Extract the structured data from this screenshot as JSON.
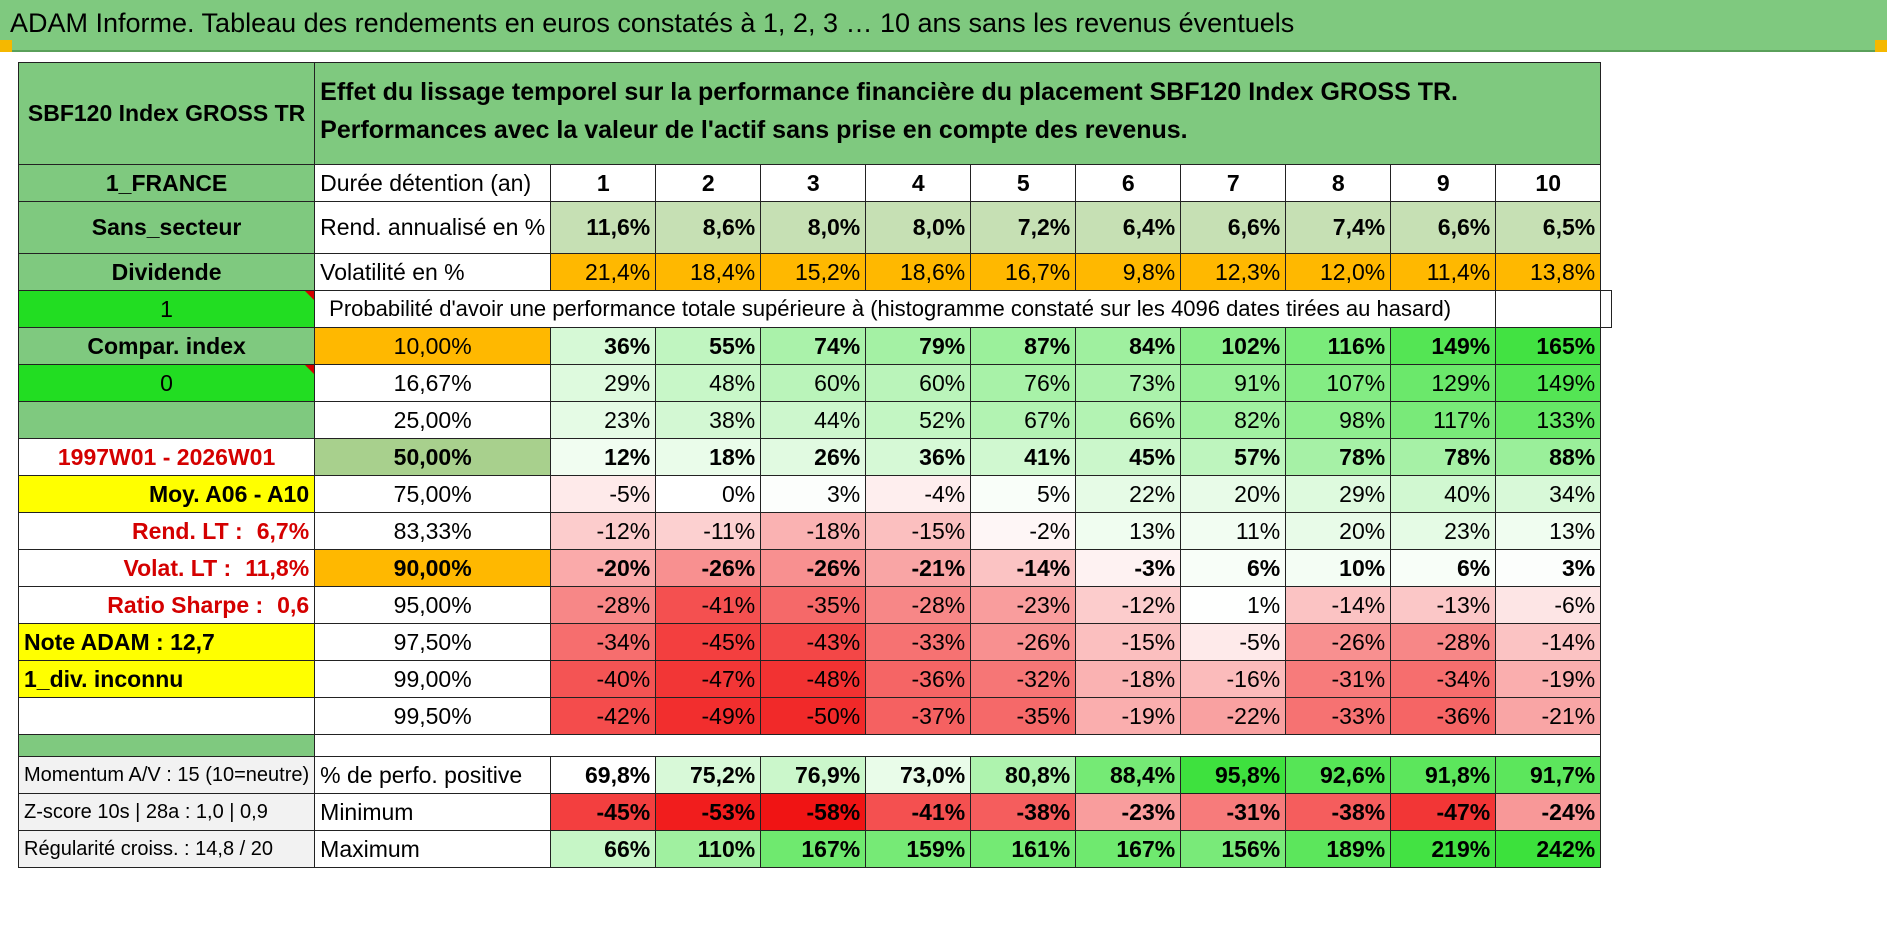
{
  "title": "ADAM Informe. Tableau des rendements en euros constatés à 1, 2, 3 … 10 ans sans les revenus éventuels",
  "fund_name": "SBF120 Index GROSS TR",
  "description": "Effet du lissage temporel sur la performance financière du placement SBF120 Index GROSS TR. Performances avec la valeur de l'actif sans prise en compte des revenus.",
  "side": {
    "country": "1_FRANCE",
    "sector": "Sans_secteur",
    "dividend_label": "Dividende",
    "dividend_value": "1",
    "compar_label": "Compar. index",
    "compar_value": "0",
    "period": "1997W01 - 2026W01",
    "moy": "Moy. A06 - A10",
    "rend_lt_label": "Rend. LT :",
    "rend_lt_value": "6,7%",
    "volat_lt_label": "Volat. LT :",
    "volat_lt_value": "11,8%",
    "sharpe_label": "Ratio Sharpe :",
    "sharpe_value": "0,6",
    "note": "Note ADAM : 12,7",
    "div_inconnu": "1_div. inconnu"
  },
  "duree_label": "Durée détention (an)",
  "years": [
    "1",
    "2",
    "3",
    "4",
    "5",
    "6",
    "7",
    "8",
    "9",
    "10"
  ],
  "rend_label": "Rend. annualisé en %",
  "rend": [
    "11,6%",
    "8,6%",
    "8,0%",
    "8,0%",
    "7,2%",
    "6,4%",
    "6,6%",
    "7,4%",
    "6,6%",
    "6,5%"
  ],
  "volat_label": "Volatilité en %",
  "volat": [
    "21,4%",
    "18,4%",
    "15,2%",
    "18,6%",
    "16,7%",
    "9,8%",
    "12,3%",
    "12,0%",
    "11,4%",
    "13,8%"
  ],
  "proba_label": "Probabilité d'avoir une performance totale supérieure à (histogramme constaté sur les 4096 dates tirées au hasard)",
  "proba_rows": [
    {
      "p": "10,00%",
      "v": [
        "36%",
        "55%",
        "74%",
        "79%",
        "87%",
        "84%",
        "102%",
        "116%",
        "149%",
        "165%"
      ]
    },
    {
      "p": "16,67%",
      "v": [
        "29%",
        "48%",
        "60%",
        "60%",
        "76%",
        "73%",
        "91%",
        "107%",
        "129%",
        "149%"
      ]
    },
    {
      "p": "25,00%",
      "v": [
        "23%",
        "38%",
        "44%",
        "52%",
        "67%",
        "66%",
        "82%",
        "98%",
        "117%",
        "133%"
      ]
    },
    {
      "p": "50,00%",
      "v": [
        "12%",
        "18%",
        "26%",
        "36%",
        "41%",
        "45%",
        "57%",
        "78%",
        "78%",
        "88%"
      ]
    },
    {
      "p": "75,00%",
      "v": [
        "-5%",
        "0%",
        "3%",
        "-4%",
        "5%",
        "22%",
        "20%",
        "29%",
        "40%",
        "34%"
      ]
    },
    {
      "p": "83,33%",
      "v": [
        "-12%",
        "-11%",
        "-18%",
        "-15%",
        "-2%",
        "13%",
        "11%",
        "20%",
        "23%",
        "13%"
      ]
    },
    {
      "p": "90,00%",
      "v": [
        "-20%",
        "-26%",
        "-26%",
        "-21%",
        "-14%",
        "-3%",
        "6%",
        "10%",
        "6%",
        "3%"
      ]
    },
    {
      "p": "95,00%",
      "v": [
        "-28%",
        "-41%",
        "-35%",
        "-28%",
        "-23%",
        "-12%",
        "1%",
        "-14%",
        "-13%",
        "-6%"
      ]
    },
    {
      "p": "97,50%",
      "v": [
        "-34%",
        "-45%",
        "-43%",
        "-33%",
        "-26%",
        "-15%",
        "-5%",
        "-26%",
        "-28%",
        "-14%"
      ]
    },
    {
      "p": "99,00%",
      "v": [
        "-40%",
        "-47%",
        "-48%",
        "-36%",
        "-32%",
        "-18%",
        "-16%",
        "-31%",
        "-34%",
        "-19%"
      ]
    },
    {
      "p": "99,50%",
      "v": [
        "-42%",
        "-49%",
        "-50%",
        "-37%",
        "-35%",
        "-19%",
        "-22%",
        "-33%",
        "-36%",
        "-21%"
      ]
    }
  ],
  "bottom": [
    {
      "side": "Momentum A/V : 15 (10=neutre)",
      "label": "% de perfo. positive",
      "v": [
        "69,8%",
        "75,2%",
        "76,9%",
        "73,0%",
        "80,8%",
        "88,4%",
        "95,8%",
        "92,6%",
        "91,8%",
        "91,7%"
      ]
    },
    {
      "side": "Z-score 10s | 28a : 1,0 | 0,9",
      "label": "Minimum",
      "v": [
        "-45%",
        "-53%",
        "-58%",
        "-41%",
        "-38%",
        "-23%",
        "-31%",
        "-38%",
        "-47%",
        "-24%"
      ]
    },
    {
      "side": "Régularité croiss. : 14,8 / 20",
      "label": "Maximum",
      "v": [
        "66%",
        "110%",
        "167%",
        "159%",
        "161%",
        "167%",
        "156%",
        "189%",
        "219%",
        "242%"
      ]
    }
  ],
  "colors": {
    "header_green": "#7fc97f",
    "bright_green": "#22dd22",
    "yellow": "#ffff00",
    "orange": "#ffb800",
    "rend_green": "#c6e0b4",
    "label_red": "#d40000"
  }
}
